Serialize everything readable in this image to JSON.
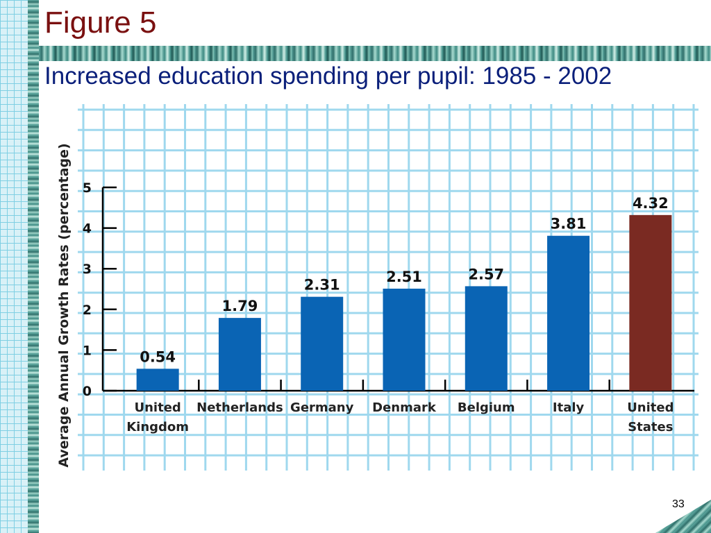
{
  "slide": {
    "figure_title": "Figure 5",
    "subtitle": "Increased education spending per pupil: 1985 - 2002",
    "page_number": "33"
  },
  "chart_data": {
    "type": "bar",
    "ylabel": "Average Annual Growth Rates (percentage)",
    "xlabel": "",
    "ylim": [
      0,
      5
    ],
    "yticks": [
      0,
      1,
      2,
      3,
      4,
      5
    ],
    "grid": true,
    "categories": [
      [
        "United",
        "Kingdom"
      ],
      [
        "Netherlands"
      ],
      [
        "Germany"
      ],
      [
        "Denmark"
      ],
      [
        "Belgium"
      ],
      [
        "Italy"
      ],
      [
        "United",
        "States"
      ]
    ],
    "values": [
      0.54,
      1.79,
      2.31,
      2.51,
      2.57,
      3.81,
      4.32
    ],
    "value_labels": [
      "0.54",
      "1.79",
      "2.31",
      "2.51",
      "2.57",
      "3.81",
      "4.32"
    ],
    "colors": {
      "default_bar": "#0a64b4",
      "highlight_bar": "#7a2a22",
      "grid": "#9fd8ee",
      "axis": "#000000",
      "text": "#111111"
    },
    "highlight_index": 6
  }
}
